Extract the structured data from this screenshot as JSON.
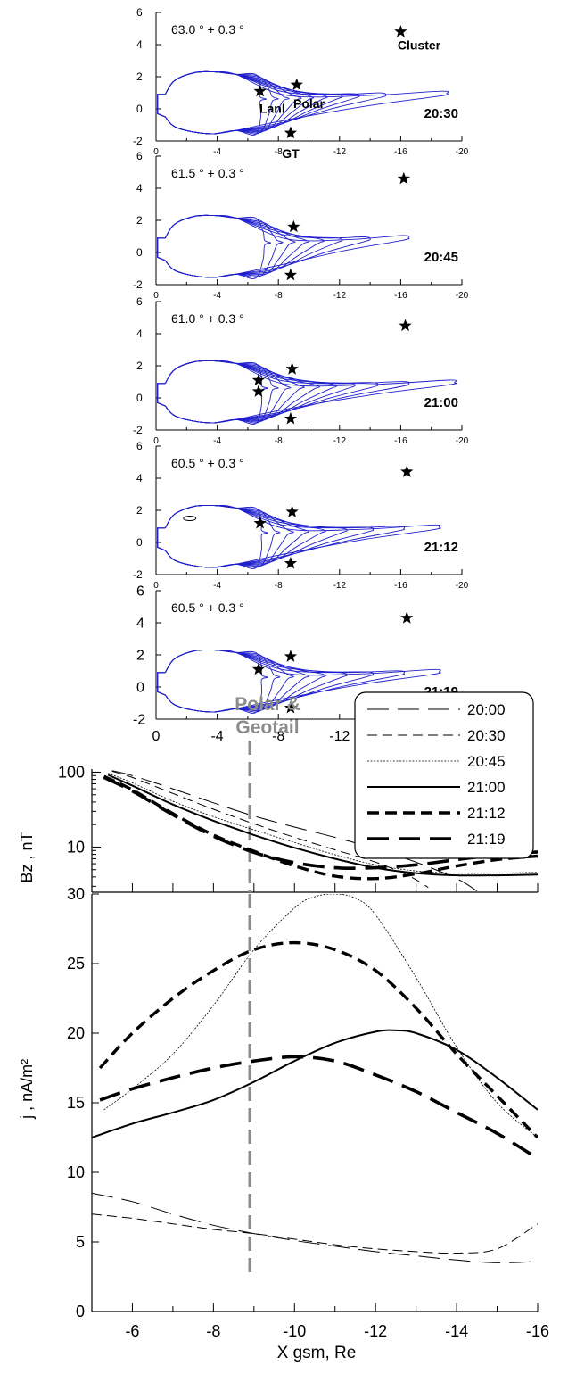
{
  "chart_data": [
    {
      "type": "line",
      "kind": "field-line-panels",
      "x_ticks": [
        "0",
        "-4",
        "-8",
        "-12",
        "-16",
        "-20"
      ],
      "y_ticks": [
        "6",
        "4",
        "2",
        "0",
        "-2"
      ],
      "xlim": [
        0,
        -20
      ],
      "ylim": [
        -2,
        6
      ],
      "line_color": "#1f1fcc",
      "marker": "star",
      "panels": [
        {
          "time": "20:30",
          "angle_label": "63.0 ° + 0.3 °",
          "spacecraft_labels": {
            "cluster": "Cluster",
            "lanl": "Lanl",
            "polar": "Polar",
            "gt": "GT"
          },
          "stars": [
            [
              -6.8,
              1.1
            ],
            [
              -9.2,
              1.5
            ],
            [
              -8.8,
              -1.5
            ],
            [
              -16.0,
              4.8
            ]
          ],
          "tail_ends": [
            -7.2,
            -8.0,
            -8.7,
            -9.5,
            -10.3,
            -11.2,
            -12.2,
            -13.3,
            -15.0,
            -19.0
          ],
          "loop": null
        },
        {
          "time": "20:45",
          "angle_label": "61.5 ° + 0.3 °",
          "spacecraft_labels": null,
          "stars": [
            [
              -9.0,
              1.6
            ],
            [
              -8.8,
              -1.4
            ],
            [
              -16.2,
              4.6
            ]
          ],
          "tail_ends": [
            -7.5,
            -8.3,
            -9.1,
            -10.0,
            -11.0,
            -12.2,
            -14.0,
            -16.5
          ],
          "loop": null
        },
        {
          "time": "21:00",
          "angle_label": "61.0 ° + 0.3 °",
          "spacecraft_labels": null,
          "stars": [
            [
              -6.7,
              1.1
            ],
            [
              -6.7,
              0.4
            ],
            [
              -8.9,
              1.8
            ],
            [
              -8.8,
              -1.3
            ],
            [
              -16.3,
              4.5
            ]
          ],
          "tail_ends": [
            -7.3,
            -8.0,
            -8.8,
            -9.7,
            -10.7,
            -11.8,
            -13.0,
            -14.5,
            -16.5,
            -19.5
          ],
          "loop": null
        },
        {
          "time": "21:12",
          "angle_label": "60.5 °  + 0.3 °",
          "spacecraft_labels": null,
          "stars": [
            [
              -6.8,
              1.2
            ],
            [
              -8.9,
              1.9
            ],
            [
              -8.8,
              -1.3
            ],
            [
              -16.4,
              4.4
            ]
          ],
          "tail_ends": [
            -7.3,
            -8.1,
            -9.0,
            -10.0,
            -11.1,
            -12.5,
            -14.2,
            -16.2,
            -18.5
          ],
          "loop": [
            -2.2,
            1.5
          ]
        },
        {
          "time": "21:19",
          "angle_label": "60.5 ° + 0.3 °",
          "spacecraft_labels": null,
          "stars": [
            [
              -6.7,
              1.1
            ],
            [
              -8.8,
              1.9
            ],
            [
              -8.8,
              -1.3
            ],
            [
              -16.4,
              4.3
            ]
          ],
          "tail_ends": [
            -7.3,
            -8.1,
            -9.0,
            -10.0,
            -11.1,
            -12.5,
            -14.2,
            -16.2,
            -18.5
          ],
          "loop": null
        }
      ]
    },
    {
      "type": "line",
      "ylabel": "Bz ,  nT",
      "yscale": "log",
      "ylim": [
        2.5,
        110
      ],
      "y_ticks": [
        "100",
        "10"
      ],
      "xlim": [
        -5,
        -16
      ],
      "x_ticks": [
        "-6",
        "-8",
        "-10",
        "-12",
        "-14",
        "-16"
      ],
      "vline": {
        "x": -8.9,
        "label": [
          "Polar &",
          "Geotail"
        ],
        "color": "#8c8c8c"
      },
      "legend_position": "top-right",
      "series": [
        {
          "name": "20:00",
          "x": [
            -5.5,
            -6,
            -7,
            -8,
            -9,
            -10,
            -11,
            -12,
            -13,
            -14,
            -14.5
          ],
          "y": [
            105,
            90,
            60,
            39,
            26,
            18.5,
            13.5,
            9.5,
            6.3,
            3.8,
            2.6
          ]
        },
        {
          "name": "20:30",
          "x": [
            -5.5,
            -6,
            -7,
            -8,
            -9,
            -10,
            -11,
            -12,
            -12.8,
            -13.3
          ],
          "y": [
            103,
            85,
            52,
            32,
            20.5,
            13.5,
            9.2,
            6.3,
            4.2,
            2.9
          ]
        },
        {
          "name": "20:45",
          "x": [
            -5.4,
            -6,
            -7,
            -8,
            -9,
            -10,
            -11,
            -12,
            -13,
            -14,
            -15,
            -16
          ],
          "y": [
            97,
            72,
            41,
            25.5,
            17,
            11.5,
            7.9,
            5.8,
            4.8,
            4.5,
            4.5,
            4.6
          ]
        },
        {
          "name": "21:00",
          "x": [
            -5.4,
            -6,
            -7,
            -8,
            -9,
            -10,
            -11,
            -12,
            -13,
            -14,
            -15,
            -16
          ],
          "y": [
            92,
            66,
            37,
            22.5,
            14.5,
            9.8,
            7.0,
            5.3,
            4.5,
            4.2,
            4.2,
            4.3
          ]
        },
        {
          "name": "21:12",
          "x": [
            -5.3,
            -6,
            -7,
            -8,
            -9,
            -10,
            -11,
            -12,
            -13,
            -14,
            -15,
            -16
          ],
          "y": [
            88,
            58,
            28,
            14.5,
            8.8,
            5.6,
            4.1,
            3.8,
            4.4,
            5.6,
            6.8,
            7.6
          ]
        },
        {
          "name": "21:19",
          "x": [
            -5.3,
            -6,
            -7,
            -8,
            -9,
            -10,
            -11,
            -12,
            -13,
            -14,
            -15,
            -16
          ],
          "y": [
            85,
            56,
            27,
            14,
            8.5,
            6.2,
            5.3,
            5.3,
            5.8,
            6.8,
            7.9,
            8.6
          ]
        }
      ]
    },
    {
      "type": "line",
      "ylabel": "j ,  nA/m²",
      "xlabel": "X gsm, Re",
      "ylim": [
        0,
        30
      ],
      "y_ticks": [
        "0",
        "5",
        "10",
        "15",
        "20",
        "25",
        "30"
      ],
      "xlim": [
        -5,
        -16
      ],
      "x_ticks": [
        "-6",
        "-8",
        "-10",
        "-12",
        "-14",
        "-16"
      ],
      "vline": {
        "x": -8.9,
        "color": "#8c8c8c"
      },
      "series": [
        {
          "name": "20:00",
          "x": [
            -5,
            -6,
            -7,
            -8,
            -9,
            -10,
            -11,
            -12,
            -13,
            -14,
            -15,
            -16
          ],
          "y": [
            8.5,
            7.9,
            7.0,
            6.2,
            5.6,
            5.1,
            4.7,
            4.3,
            4.0,
            3.7,
            3.5,
            3.6
          ]
        },
        {
          "name": "20:30",
          "x": [
            -5,
            -6,
            -7,
            -8,
            -9,
            -10,
            -11,
            -12,
            -13,
            -14,
            -15,
            -16
          ],
          "y": [
            7.0,
            6.7,
            6.3,
            5.9,
            5.6,
            5.2,
            4.8,
            4.5,
            4.3,
            4.2,
            4.5,
            6.3
          ]
        },
        {
          "name": "20:45",
          "x": [
            -5.3,
            -6,
            -7,
            -8,
            -9,
            -10,
            -10.5,
            -11,
            -11.5,
            -12,
            -13,
            -14,
            -15,
            -16
          ],
          "y": [
            14.5,
            16.0,
            18.5,
            22.0,
            26.0,
            29.0,
            29.8,
            30.0,
            29.7,
            28.5,
            24.0,
            19.0,
            15.0,
            12.5
          ]
        },
        {
          "name": "21:00",
          "x": [
            -5,
            -6,
            -7,
            -8,
            -9,
            -10,
            -11,
            -12,
            -12.5,
            -13,
            -14,
            -15,
            -16
          ],
          "y": [
            12.5,
            13.5,
            14.3,
            15.2,
            16.5,
            18.0,
            19.3,
            20.1,
            20.2,
            20.0,
            18.8,
            16.8,
            14.5
          ]
        },
        {
          "name": "21:12",
          "x": [
            -5.2,
            -6,
            -7,
            -8,
            -9,
            -10,
            -11,
            -12,
            -13,
            -14,
            -15,
            -16
          ],
          "y": [
            17.5,
            20.0,
            22.5,
            24.5,
            26.0,
            26.5,
            26.0,
            24.5,
            21.8,
            18.5,
            15.5,
            12.5
          ]
        },
        {
          "name": "21:19",
          "x": [
            -5.2,
            -6,
            -7,
            -8,
            -9,
            -10,
            -11,
            -12,
            -13,
            -14,
            -15,
            -16
          ],
          "y": [
            15.2,
            16.0,
            16.8,
            17.5,
            18.0,
            18.3,
            18.0,
            17.0,
            15.8,
            14.3,
            12.8,
            11.0
          ]
        }
      ]
    }
  ]
}
